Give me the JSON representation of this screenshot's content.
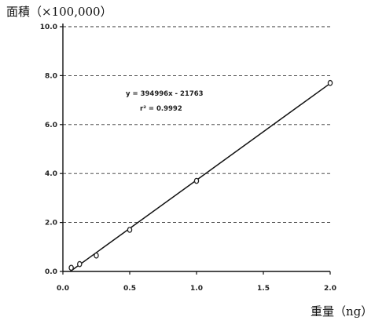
{
  "chart_data": {
    "type": "scatter",
    "ylabel": "面積（×100,000）",
    "xlabel": "重量（ng）",
    "xlim": [
      0,
      2.0
    ],
    "ylim": [
      0,
      10.0
    ],
    "x_ticks": [
      "0.0",
      "0.5",
      "1.0",
      "1.5",
      "2.0"
    ],
    "y_ticks": [
      "0.0",
      "2.0",
      "4.0",
      "6.0",
      "8.0",
      "10.0"
    ],
    "grid": "horizontal-dashed",
    "series": [
      {
        "x": [
          0.0625,
          0.125,
          0.25,
          0.5,
          1.0,
          2.0
        ],
        "y": [
          0.15,
          0.3,
          0.65,
          1.7,
          3.7,
          7.7
        ]
      }
    ],
    "trendline": {
      "slope": 3.94996,
      "intercept": -0.21763
    },
    "annotations": [
      "y = 394996x - 21763",
      "r² = 0.9992"
    ]
  }
}
